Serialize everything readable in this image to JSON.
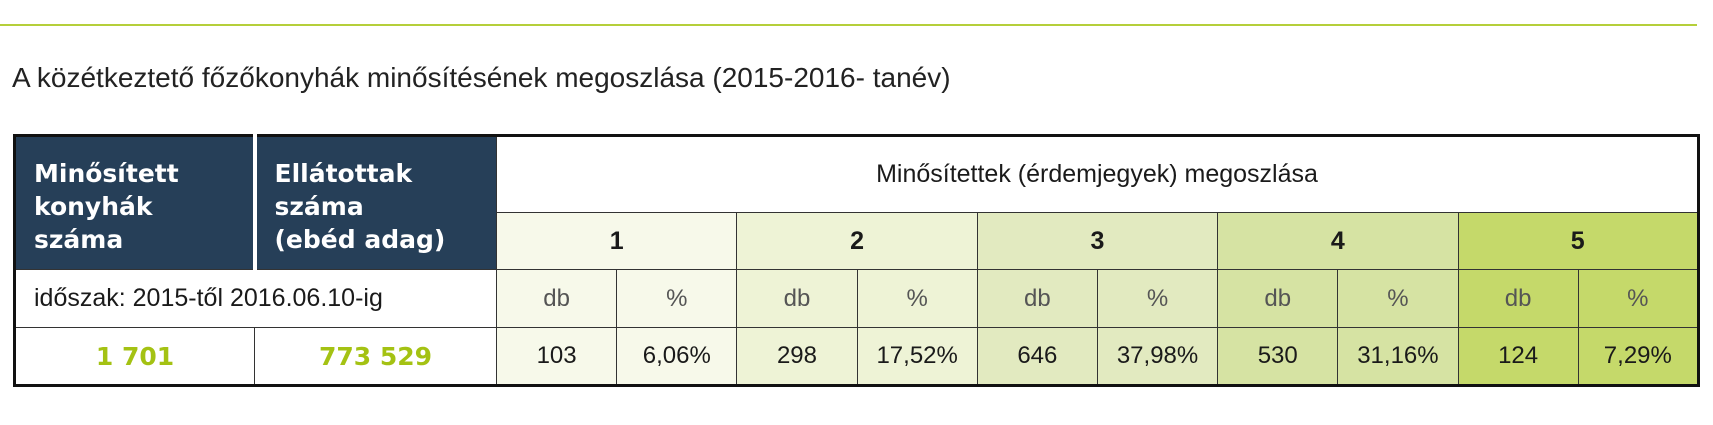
{
  "title": "A közétkeztető főzőkonyhák minősítésének megoszlása (2015-2016- tanév)",
  "table": {
    "headers": [
      [
        "Minősített",
        "konyhák",
        "száma"
      ],
      [
        "Ellátottak",
        "száma",
        "(ebéd adag)"
      ]
    ],
    "group_header": "Minősítettek (érdemjegyek) megoszlása",
    "grades": [
      "1",
      "2",
      "3",
      "4",
      "5"
    ],
    "period": "időszak: 2015-től 2016.06.10-ig",
    "units": [
      [
        "db",
        "%"
      ],
      [
        "db",
        "%"
      ],
      [
        "db",
        "%"
      ],
      [
        "db",
        "%"
      ],
      [
        "db",
        "%"
      ]
    ],
    "kitchens": "1 701",
    "served": "773 529",
    "values": [
      [
        "103",
        "6,06%"
      ],
      [
        "298",
        "17,52%"
      ],
      [
        "646",
        "37,98%"
      ],
      [
        "530",
        "31,16%"
      ],
      [
        "124",
        "7,29%"
      ]
    ]
  }
}
